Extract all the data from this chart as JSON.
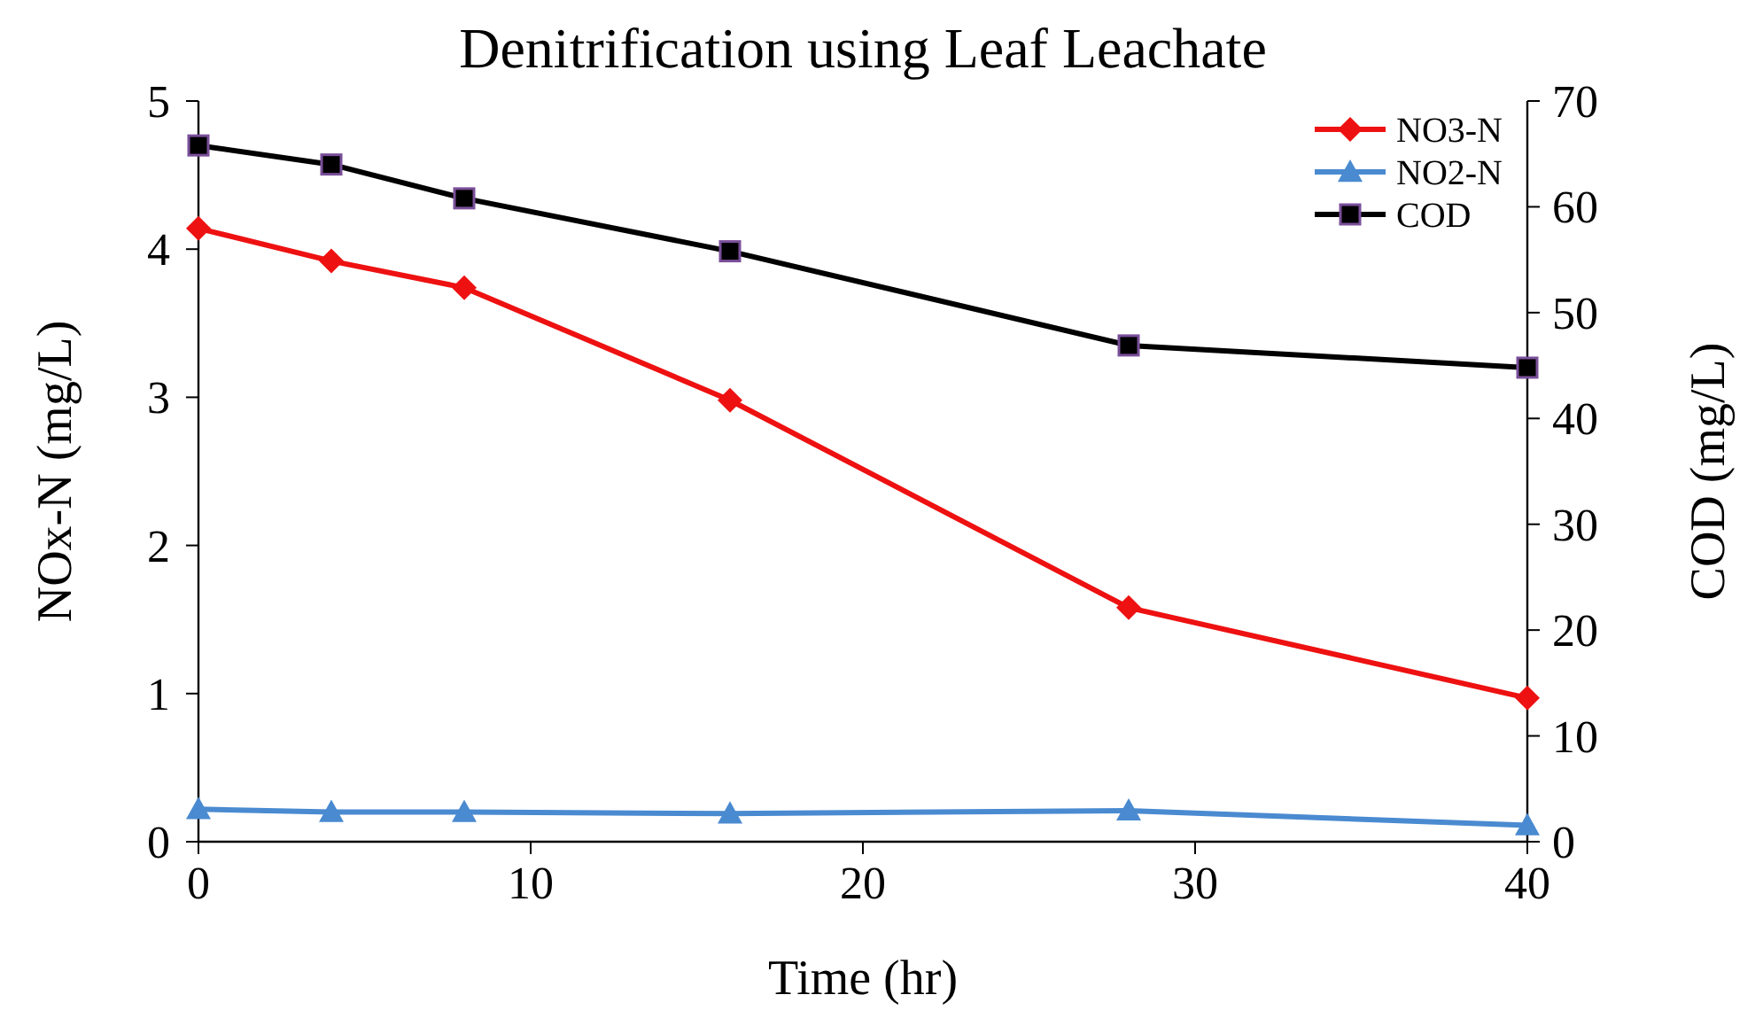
{
  "chart_data": {
    "type": "line",
    "title": "Denitrification using Leaf Leachate",
    "xlabel": "Time (hr)",
    "ylabel": "NOx-N (mg/L)",
    "y2label": "COD (mg/L)",
    "x": [
      0,
      4,
      8,
      16,
      28,
      40
    ],
    "xlim": [
      0,
      40
    ],
    "xticks": [
      0,
      10,
      20,
      30,
      40
    ],
    "ylim": [
      0,
      5
    ],
    "yticks": [
      0,
      1,
      2,
      3,
      4,
      5
    ],
    "y2lim": [
      0,
      70
    ],
    "y2ticks": [
      0,
      10,
      20,
      30,
      40,
      50,
      60,
      70
    ],
    "legend": "top right",
    "grid": false,
    "line_style": "solid",
    "series": [
      {
        "name": "NO3-N",
        "color": "#ee1111",
        "marker": "diamond",
        "values": [
          4.14,
          3.92,
          3.74,
          2.98,
          1.58,
          0.97
        ]
      },
      {
        "name": "NO2-N",
        "color": "#4a8ad0",
        "marker": "triangle",
        "values": [
          0.22,
          0.2,
          0.2,
          0.19,
          0.21,
          0.11
        ]
      },
      {
        "name": "COD",
        "color": "#000000",
        "marker": "square",
        "axis": "y2",
        "values": [
          65.8,
          64,
          60.8,
          55.8,
          46.9,
          44.8
        ]
      }
    ]
  }
}
